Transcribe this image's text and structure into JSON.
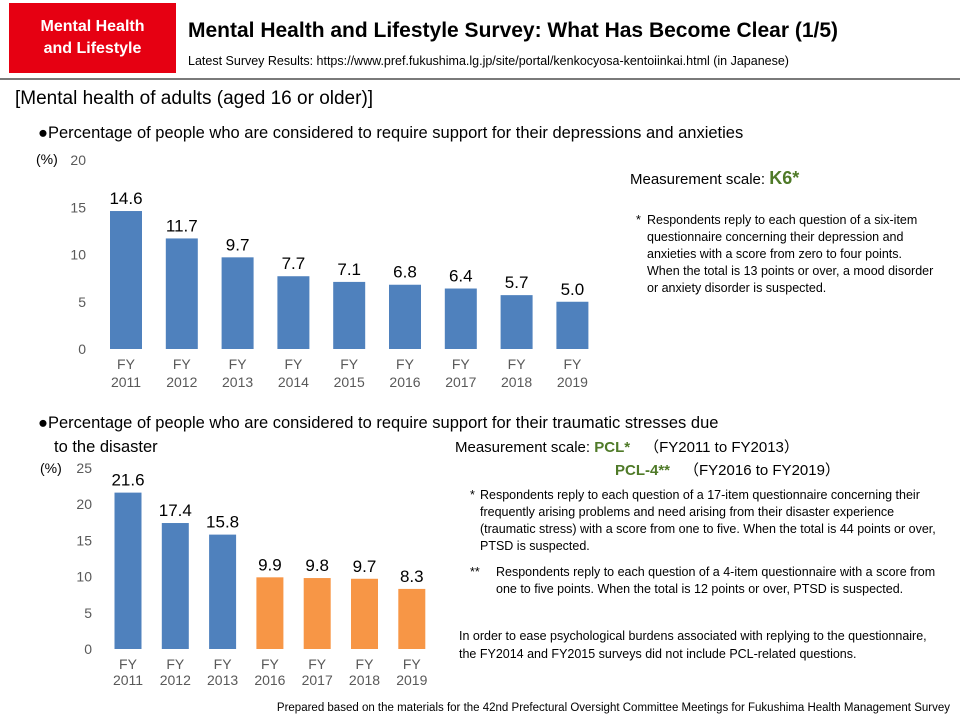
{
  "header": {
    "badge_line1": "Mental Health",
    "badge_line2": "and Lifestyle",
    "title": "Mental Health and Lifestyle Survey: What Has Become Clear (1/5)",
    "subtitle": "Latest Survey Results: https://www.pref.fukushima.lg.jp/site/portal/kenkocyosa-kentoiinkai.html  (in Japanese)"
  },
  "section_title": "[Mental health of adults (aged 16 or older)]",
  "bullet1": "●Percentage of people who are considered to require support for their depressions and anxieties",
  "bullet2_line1": "●Percentage of people who are considered to require support for their traumatic stresses due",
  "bullet2_line2": "to the disaster",
  "k6": {
    "label": "Measurement scale: ",
    "name": "K6*",
    "mark": "*",
    "note": "Respondents reply to each question of a six-item questionnaire concerning their depression and anxieties with a score from zero to four points. When the total is 13 points or over, a mood disorder or anxiety disorder is suspected."
  },
  "pcl": {
    "label": "Measurement scale: ",
    "name1": "PCL*",
    "range1": "（FY2011 to FY2013）",
    "name2": "PCL-4**",
    "range2": "（FY2016 to FY2019）",
    "mark1": "*",
    "note1": "Respondents reply to each question of a 17-item questionnaire concerning their frequently arising problems and need arising from their disaster experience (traumatic stress) with a score from one to five. When the total is 44 points or over, PTSD is suspected.",
    "mark2": "**",
    "note2": "Respondents reply to each question of a 4-item questionnaire with a score from one to five points. When the total is 12 points or over, PTSD is suspected.",
    "closing": "In order to ease psychological burdens associated with replying to the questionnaire, the FY2014 and FY2015 surveys did not include PCL-related questions."
  },
  "footer": "Prepared based on the materials for the 42nd Prefectural Oversight Committee Meetings for Fukushima  Health Management Survey",
  "colors": {
    "blue": "#4f81bd",
    "orange": "#f79646",
    "badge": "#e60012",
    "green": "#4f7a28"
  },
  "chart_data": [
    {
      "type": "bar",
      "title": "Percentage of people who are considered to require support for their depressions and anxieties",
      "ylabel": "(%)",
      "ylim": [
        0,
        20
      ],
      "yticks": [
        0,
        5,
        10,
        15,
        20
      ],
      "grid": false,
      "categories": [
        [
          "FY",
          "2011"
        ],
        [
          "FY",
          "2012"
        ],
        [
          "FY",
          "2013"
        ],
        [
          "FY",
          "2014"
        ],
        [
          "FY",
          "2015"
        ],
        [
          "FY",
          "2016"
        ],
        [
          "FY",
          "2017"
        ],
        [
          "FY",
          "2018"
        ],
        [
          "FY",
          "2019"
        ]
      ],
      "values": [
        14.6,
        11.7,
        9.7,
        7.7,
        7.1,
        6.8,
        6.4,
        5.7,
        5.0
      ],
      "labels": [
        "14.6",
        "11.7",
        "9.7",
        "7.7",
        "7.1",
        "6.8",
        "6.4",
        "5.7",
        "5.0"
      ],
      "bar_colors": [
        "#4f81bd",
        "#4f81bd",
        "#4f81bd",
        "#4f81bd",
        "#4f81bd",
        "#4f81bd",
        "#4f81bd",
        "#4f81bd",
        "#4f81bd"
      ]
    },
    {
      "type": "bar",
      "title": "Percentage of people who are considered to require support for their traumatic stresses due to the disaster",
      "ylabel": "(%)",
      "ylim": [
        0,
        25
      ],
      "yticks": [
        0,
        5,
        10,
        15,
        20,
        25
      ],
      "grid": false,
      "categories": [
        [
          "FY",
          "2011"
        ],
        [
          "FY",
          "2012"
        ],
        [
          "FY",
          "2013"
        ],
        [
          "FY",
          "2016"
        ],
        [
          "FY",
          "2017"
        ],
        [
          "FY",
          "2018"
        ],
        [
          "FY",
          "2019"
        ]
      ],
      "values": [
        21.6,
        17.4,
        15.8,
        9.9,
        9.8,
        9.7,
        8.3
      ],
      "labels": [
        "21.6",
        "17.4",
        "15.8",
        "9.9",
        "9.8",
        "9.7",
        "8.3"
      ],
      "bar_colors": [
        "#4f81bd",
        "#4f81bd",
        "#4f81bd",
        "#f79646",
        "#f79646",
        "#f79646",
        "#f79646"
      ]
    }
  ]
}
